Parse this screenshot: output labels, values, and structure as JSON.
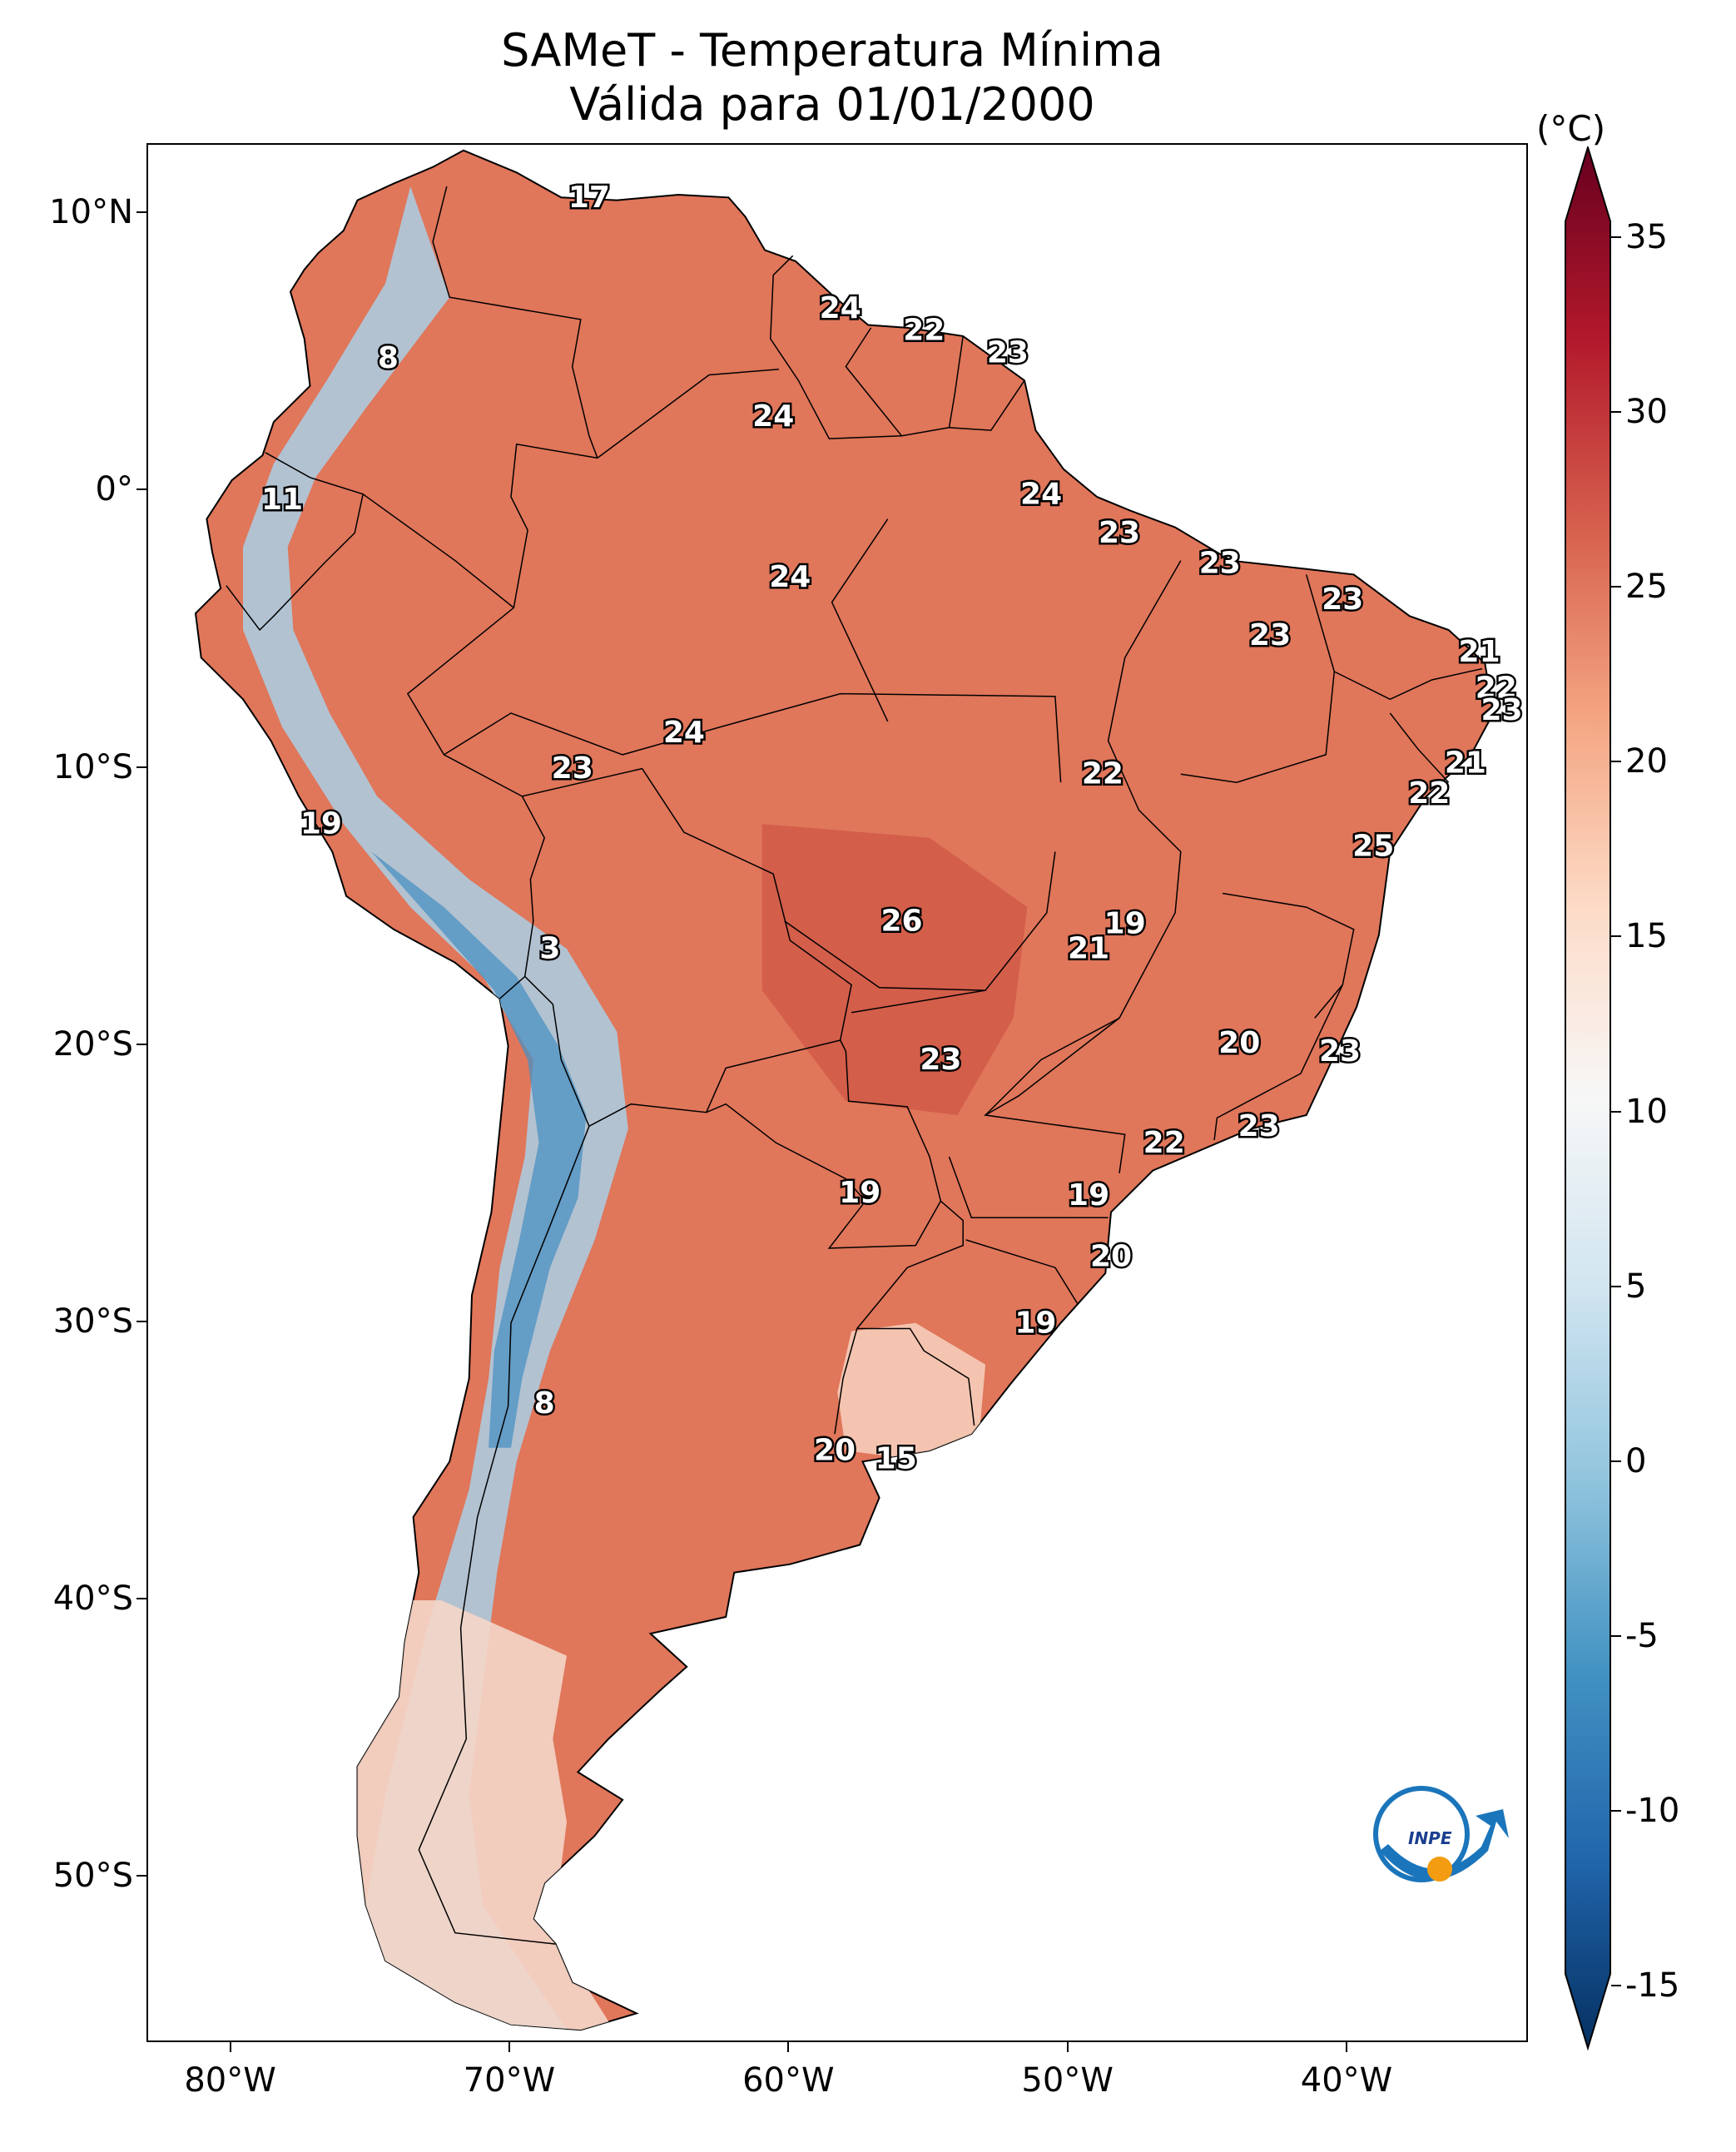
{
  "title": {
    "line1": "SAMeT - Temperatura Mínima",
    "line2": "Válida para 01/01/2000"
  },
  "colorbar": {
    "unit": "(°C)",
    "min": -15,
    "max": 35,
    "ticks": [
      "35",
      "30",
      "25",
      "20",
      "15",
      "10",
      "5",
      "0",
      "-5",
      "-10",
      "-15"
    ],
    "colors": [
      "#053061",
      "#2166ac",
      "#4393c3",
      "#92c5de",
      "#d1e5f0",
      "#f7f7f7",
      "#fddbc7",
      "#f4a582",
      "#d6604d",
      "#b2182b",
      "#67001f"
    ]
  },
  "axes": {
    "lat_ticks": [
      "10°N",
      "0°",
      "10°S",
      "20°S",
      "30°S",
      "40°S",
      "50°S"
    ],
    "lon_ticks": [
      "80°W",
      "70°W",
      "60°W",
      "50°W",
      "40°W"
    ],
    "lat_range": [
      -56,
      12.5
    ],
    "lon_range": [
      -83,
      -33.5
    ]
  },
  "map_labels": [
    {
      "value": "17",
      "lat": 10.6,
      "lon": -67.2
    },
    {
      "value": "8",
      "lat": 4.8,
      "lon": -74.4
    },
    {
      "value": "24",
      "lat": 6.6,
      "lon": -58.2
    },
    {
      "value": "22",
      "lat": 5.8,
      "lon": -55.2
    },
    {
      "value": "23",
      "lat": 5.0,
      "lon": -52.2
    },
    {
      "value": "24",
      "lat": 2.7,
      "lon": -60.6
    },
    {
      "value": "11",
      "lat": -0.3,
      "lon": -78.2
    },
    {
      "value": "24",
      "lat": -0.1,
      "lon": -51.0
    },
    {
      "value": "23",
      "lat": -1.5,
      "lon": -48.2
    },
    {
      "value": "24",
      "lat": -3.1,
      "lon": -60.0
    },
    {
      "value": "23",
      "lat": -2.6,
      "lon": -44.6
    },
    {
      "value": "23",
      "lat": -3.9,
      "lon": -40.2
    },
    {
      "value": "23",
      "lat": -5.2,
      "lon": -42.8
    },
    {
      "value": "21",
      "lat": -5.8,
      "lon": -35.3
    },
    {
      "value": "22",
      "lat": -7.1,
      "lon": -34.7
    },
    {
      "value": "23",
      "lat": -7.9,
      "lon": -34.5
    },
    {
      "value": "24",
      "lat": -8.7,
      "lon": -63.8
    },
    {
      "value": "23",
      "lat": -10.0,
      "lon": -67.8
    },
    {
      "value": "21",
      "lat": -9.8,
      "lon": -35.8
    },
    {
      "value": "22",
      "lat": -10.2,
      "lon": -48.8
    },
    {
      "value": "22",
      "lat": -10.9,
      "lon": -37.1
    },
    {
      "value": "19",
      "lat": -12.0,
      "lon": -76.8
    },
    {
      "value": "25",
      "lat": -12.8,
      "lon": -39.1
    },
    {
      "value": "26",
      "lat": -15.5,
      "lon": -56.0
    },
    {
      "value": "19",
      "lat": -15.6,
      "lon": -48.0
    },
    {
      "value": "21",
      "lat": -16.5,
      "lon": -49.3
    },
    {
      "value": "3",
      "lat": -16.5,
      "lon": -68.6
    },
    {
      "value": "20",
      "lat": -19.9,
      "lon": -43.9
    },
    {
      "value": "23",
      "lat": -20.2,
      "lon": -40.3
    },
    {
      "value": "23",
      "lat": -20.5,
      "lon": -54.6
    },
    {
      "value": "23",
      "lat": -22.9,
      "lon": -43.2
    },
    {
      "value": "22",
      "lat": -23.5,
      "lon": -46.6
    },
    {
      "value": "19",
      "lat": -25.3,
      "lon": -57.5
    },
    {
      "value": "19",
      "lat": -25.4,
      "lon": -49.3
    },
    {
      "value": "20",
      "lat": -27.6,
      "lon": -48.5
    },
    {
      "value": "19",
      "lat": -30.0,
      "lon": -51.2
    },
    {
      "value": "8",
      "lat": -32.9,
      "lon": -68.8
    },
    {
      "value": "20",
      "lat": -34.6,
      "lon": -58.4
    },
    {
      "value": "15",
      "lat": -34.9,
      "lon": -56.2
    }
  ],
  "logo": {
    "text": "INPE"
  }
}
